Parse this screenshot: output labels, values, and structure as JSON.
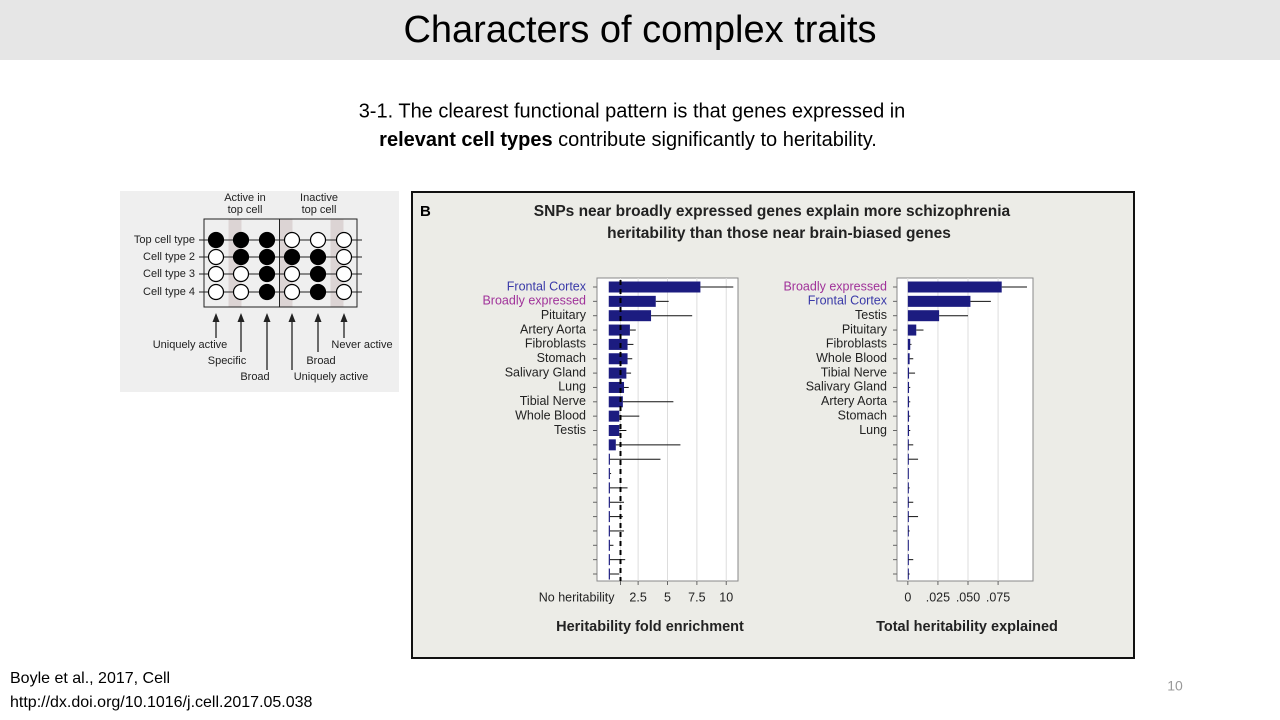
{
  "header": {
    "title": "Characters of complex traits"
  },
  "body": {
    "line1": "3-1. The clearest functional pattern is that genes expressed in",
    "bold": "relevant cell types",
    "rest": " contribute significantly to heritability."
  },
  "figure_a": {
    "column_headers": [
      [
        "Active in",
        "top cell"
      ],
      [
        "Inactive",
        "top cell"
      ]
    ],
    "rows": [
      "Top cell type",
      "Cell type 2",
      "Cell type 3",
      "Cell type 4"
    ],
    "annotations": [
      "Uniquely active",
      "Specific",
      "Broad",
      "Broad",
      "Uniquely active",
      "Never active"
    ]
  },
  "figure_b": {
    "panel_label": "B",
    "title": [
      "SNPs near broadly expressed genes explain more schizophrenia",
      "heritability than those near brain-biased genes"
    ],
    "charts": [
      {
        "type": "bar",
        "xlabel": "Heritability fold enrichment",
        "categories": [
          "Frontal Cortex",
          "Broadly expressed",
          "Pituitary",
          "Artery Aorta",
          "Fibroblasts",
          "Stomach",
          "Salivary Gland",
          "Lung",
          "Tibial Nerve",
          "Whole Blood",
          "Testis",
          null,
          null,
          null,
          null,
          null,
          null,
          null,
          null,
          null,
          null
        ],
        "label_colors": {
          "Frontal Cortex": "#3a3aa8",
          "Broadly expressed": "#a0329a"
        },
        "values": [
          7.8,
          4.0,
          3.6,
          1.8,
          1.6,
          1.6,
          1.5,
          1.3,
          1.2,
          0.9,
          0.9,
          0.6,
          0.1,
          0.1,
          0.1,
          0.1,
          0.1,
          0.1,
          0.1,
          0.1,
          0.1
        ],
        "errors": [
          2.8,
          1.1,
          3.5,
          0.5,
          0.5,
          0.4,
          0.4,
          0.4,
          4.3,
          1.7,
          0.6,
          5.5,
          4.3,
          0.1,
          1.5,
          1.2,
          1.1,
          1.2,
          0.3,
          1.3,
          0.8
        ],
        "color": "#1c1c80",
        "xlim": [
          -1,
          11
        ],
        "xticks": [
          {
            "value": 1,
            "label": "No heritability"
          },
          2.5,
          5,
          7.5,
          10
        ],
        "reference_line": 1
      },
      {
        "type": "bar",
        "xlabel": "Total heritability explained",
        "categories": [
          "Broadly expressed",
          "Frontal Cortex",
          "Testis",
          "Pituitary",
          "Fibroblasts",
          "Whole Blood",
          "Tibial Nerve",
          "Salivary Gland",
          "Artery Aorta",
          "Stomach",
          "Lung",
          null,
          null,
          null,
          null,
          null,
          null,
          null,
          null,
          null,
          null
        ],
        "label_colors": {
          "Frontal Cortex": "#3a3aa8",
          "Broadly expressed": "#a0329a"
        },
        "values": [
          0.078,
          0.052,
          0.026,
          0.007,
          0.002,
          0.0015,
          0.001,
          0.001,
          0.001,
          0.001,
          0.001,
          0.0005,
          0.0005,
          0.0005,
          0.0005,
          0.0005,
          0.0005,
          0.0005,
          0.0005,
          0.0005,
          0.0005
        ],
        "errors": [
          0.021,
          0.017,
          0.024,
          0.006,
          0.001,
          0.003,
          0.005,
          0.001,
          0.001,
          0.001,
          0.001,
          0.004,
          0.008,
          0,
          0.001,
          0.004,
          0.008,
          0.001,
          0,
          0.004,
          0.001
        ],
        "color": "#1c1c80",
        "xlim": [
          -0.009,
          0.104
        ],
        "xticks": [
          0,
          {
            "value": 0.025,
            "label": ".025"
          },
          {
            "value": 0.05,
            "label": ".050"
          },
          {
            "value": 0.075,
            "label": ".075"
          }
        ]
      }
    ]
  },
  "citation": [
    "Boyle et al., 2017, Cell",
    "http://dx.doi.org/10.1016/j.cell.2017.05.038"
  ],
  "page_number": 10
}
